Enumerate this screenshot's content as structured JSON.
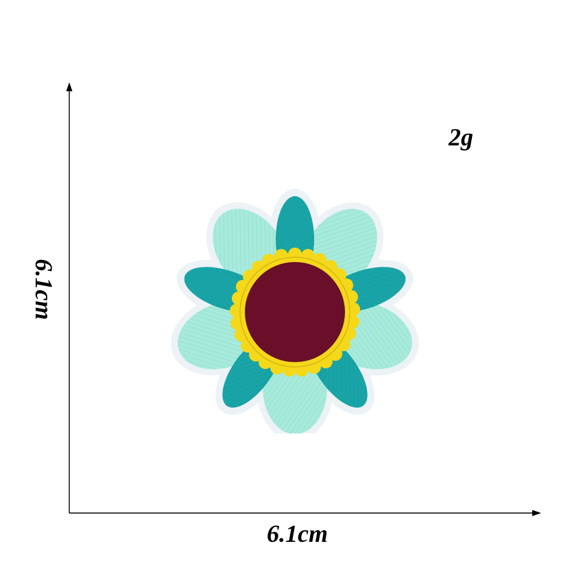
{
  "dimensions": {
    "width_label": "6.1cm",
    "height_label": "6.1cm"
  },
  "weight_label": "2g",
  "colors": {
    "light_petal": "#a6ebdc",
    "dark_petal": "#19a5a8",
    "border": "#eef3f7",
    "ring": "#f5d81a",
    "center": "#6b0f2a",
    "axis": "#000000"
  },
  "icons": {
    "patch": "flower-patch-icon"
  }
}
